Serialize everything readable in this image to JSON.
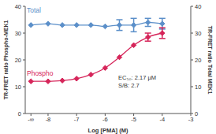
{
  "chart_data": {
    "type": "line",
    "x_label": "Log [PMA] (M)",
    "y_label": "TR-FRET ratio Phospho-MEK1",
    "y2_label": "TR-FRET ratio Total MEK1",
    "x": [
      -8.6,
      -8,
      -7.5,
      -7,
      -6.5,
      -6,
      -5.5,
      -5,
      -4.5,
      -4
    ],
    "xlim": [
      -8.8,
      -3
    ],
    "xticks": [
      {
        "value": -8.6,
        "label": "-∞"
      },
      -8,
      -7,
      -6,
      -5,
      -4,
      -3
    ],
    "ylim": [
      0,
      40
    ],
    "yticks": [
      0,
      10,
      20,
      30,
      40
    ],
    "y2lim": [
      0,
      40
    ],
    "y2ticks": [
      0,
      10,
      20,
      30,
      40
    ],
    "series": [
      {
        "name": "Total",
        "color": "#5b8fc9",
        "marker": "diamond",
        "axis": "y2",
        "values": [
          33,
          33.5,
          33,
          33,
          33,
          32.5,
          33,
          33,
          34,
          33.5
        ],
        "errors": [
          null,
          null,
          null,
          null,
          null,
          null,
          2,
          2.5,
          1.5,
          2
        ]
      },
      {
        "name": "Phospho",
        "color": "#d6255a",
        "marker": "diamond",
        "axis": "y",
        "values": [
          12,
          12,
          12.3,
          13,
          14.5,
          17,
          21,
          25.5,
          28.5,
          30
        ],
        "errors": [
          null,
          null,
          null,
          null,
          null,
          null,
          null,
          null,
          1.5,
          2
        ]
      }
    ],
    "annotations": [
      "EC₅₀: 2.17 µM",
      "S/B: 2.7"
    ],
    "grid": false,
    "legend": false
  }
}
